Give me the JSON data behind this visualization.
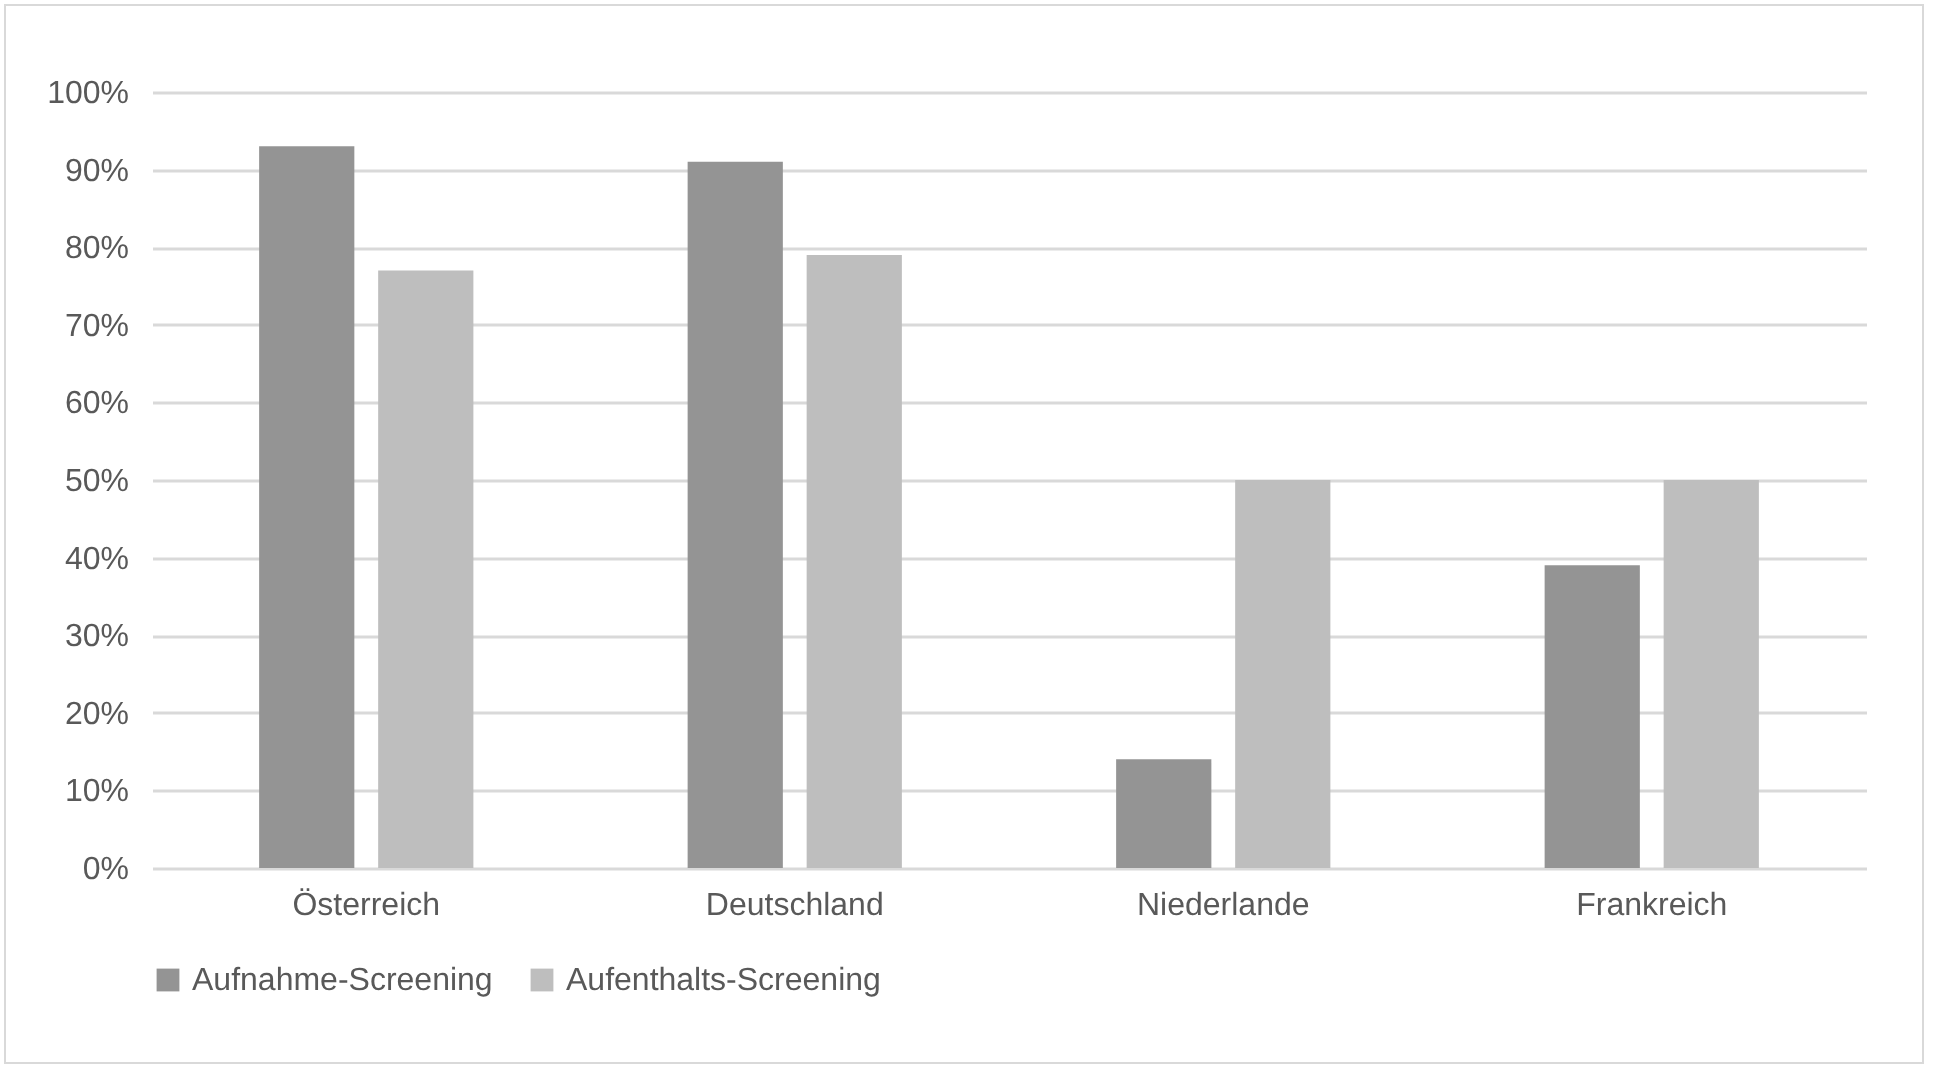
{
  "chart_data": {
    "type": "bar",
    "categories": [
      "Österreich",
      "Deutschland",
      "Niederlande",
      "Frankreich"
    ],
    "series": [
      {
        "name": "Aufnahme-Screening",
        "color": "#949494",
        "values": [
          93,
          91,
          14,
          39
        ]
      },
      {
        "name": "Aufenthalts-Screening",
        "color": "#bebebe",
        "values": [
          77,
          79,
          50,
          50
        ]
      }
    ],
    "ylim": [
      0,
      100
    ],
    "yticks": [
      {
        "value": 0,
        "label": "0%"
      },
      {
        "value": 10,
        "label": "10%"
      },
      {
        "value": 20,
        "label": "20%"
      },
      {
        "value": 30,
        "label": "30%"
      },
      {
        "value": 40,
        "label": "40%"
      },
      {
        "value": 50,
        "label": "50%"
      },
      {
        "value": 60,
        "label": "60%"
      },
      {
        "value": 70,
        "label": "70%"
      },
      {
        "value": 80,
        "label": "80%"
      },
      {
        "value": 90,
        "label": "90%"
      },
      {
        "value": 100,
        "label": "100%"
      }
    ],
    "grid": "y",
    "legend": "bottom"
  }
}
